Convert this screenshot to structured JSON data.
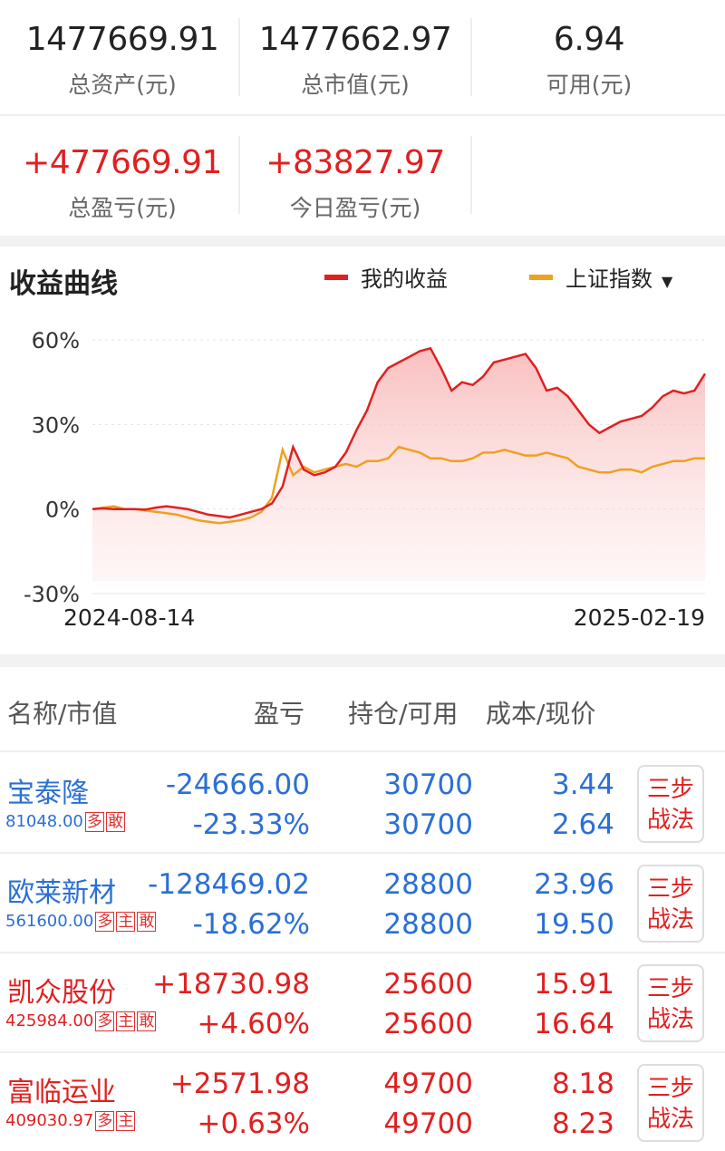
{
  "summary": {
    "total_assets": "1477669.91",
    "total_assets_label": "总资产(元)",
    "market_value": "1477662.97",
    "market_value_label": "总市值(元)",
    "available": "6.94",
    "available_label": "可用(元)",
    "total_pnl": "+477669.91",
    "total_pnl_label": "总盈亏(元)",
    "today_pnl": "+83827.97",
    "today_pnl_label": "今日盈亏(元)"
  },
  "chart": {
    "title": "收益曲线",
    "legend_mine": "我的收益",
    "legend_index": "上证指数",
    "colors": {
      "mine": "#e02020",
      "index": "#f0a020"
    }
  },
  "chart_data": {
    "type": "line",
    "title": "收益曲线",
    "y_ticks": [
      "60%",
      "30%",
      "0%",
      "-30%"
    ],
    "ylim": [
      -30,
      60
    ],
    "x_tick_labels": [
      "2024-08-14",
      "2025-02-19"
    ],
    "grid": true,
    "legend_placement": "top-right",
    "series": [
      {
        "name": "我的收益",
        "values": [
          0,
          0.2,
          0,
          0,
          0,
          -0.2,
          0.5,
          1,
          0.5,
          0,
          -1,
          -2,
          -2.5,
          -3,
          -2,
          -1,
          0,
          2,
          8,
          22,
          14,
          12,
          13,
          15,
          20,
          28,
          35,
          45,
          50,
          52,
          54,
          56,
          57,
          50,
          42,
          45,
          44,
          47,
          52,
          53,
          54,
          55,
          50,
          42,
          43,
          40,
          35,
          30,
          27,
          29,
          31,
          32,
          33,
          36,
          40,
          42,
          41,
          42,
          48
        ]
      },
      {
        "name": "上证指数",
        "values": [
          0,
          0.5,
          1,
          0,
          0,
          -0.5,
          -1,
          -1.5,
          -2,
          -3,
          -4,
          -4.5,
          -5,
          -4.5,
          -4,
          -3,
          -1,
          4,
          21,
          12,
          15,
          13,
          14,
          15,
          16,
          15,
          17,
          17,
          18,
          22,
          21,
          20,
          18,
          18,
          17,
          17,
          18,
          20,
          20,
          21,
          20,
          19,
          19,
          20,
          19,
          18,
          15,
          14,
          13,
          13,
          14,
          14,
          13,
          15,
          16,
          17,
          17,
          18,
          18
        ]
      }
    ]
  },
  "table": {
    "col_name": "名称/市值",
    "col_pnl": "盈亏",
    "col_pos": "持仓/可用",
    "col_cost": "成本/现价",
    "button_label_1": "三步",
    "button_label_2": "战法",
    "rows": [
      {
        "name": "宝泰隆",
        "mv": "81048.00",
        "tags": [
          "多",
          "敢"
        ],
        "pnl": "-24666.00",
        "pnl_pct": "-23.33%",
        "pos": "30700",
        "avail": "30700",
        "cost": "3.44",
        "price": "2.64",
        "color": "#2a6fd6"
      },
      {
        "name": "欧莱新材",
        "mv": "561600.00",
        "tags": [
          "多",
          "主",
          "敢"
        ],
        "pnl": "-128469.02",
        "pnl_pct": "-18.62%",
        "pos": "28800",
        "avail": "28800",
        "cost": "23.96",
        "price": "19.50",
        "color": "#2a6fd6"
      },
      {
        "name": "凯众股份",
        "mv": "425984.00",
        "tags": [
          "多",
          "主",
          "敢"
        ],
        "pnl": "+18730.98",
        "pnl_pct": "+4.60%",
        "pos": "25600",
        "avail": "25600",
        "cost": "15.91",
        "price": "16.64",
        "color": "#e02020"
      },
      {
        "name": "富临运业",
        "mv": "409030.97",
        "tags": [
          "多",
          "主"
        ],
        "pnl": "+2571.98",
        "pnl_pct": "+0.63%",
        "pos": "49700",
        "avail": "49700",
        "cost": "8.18",
        "price": "8.23",
        "color": "#e02020"
      }
    ]
  }
}
